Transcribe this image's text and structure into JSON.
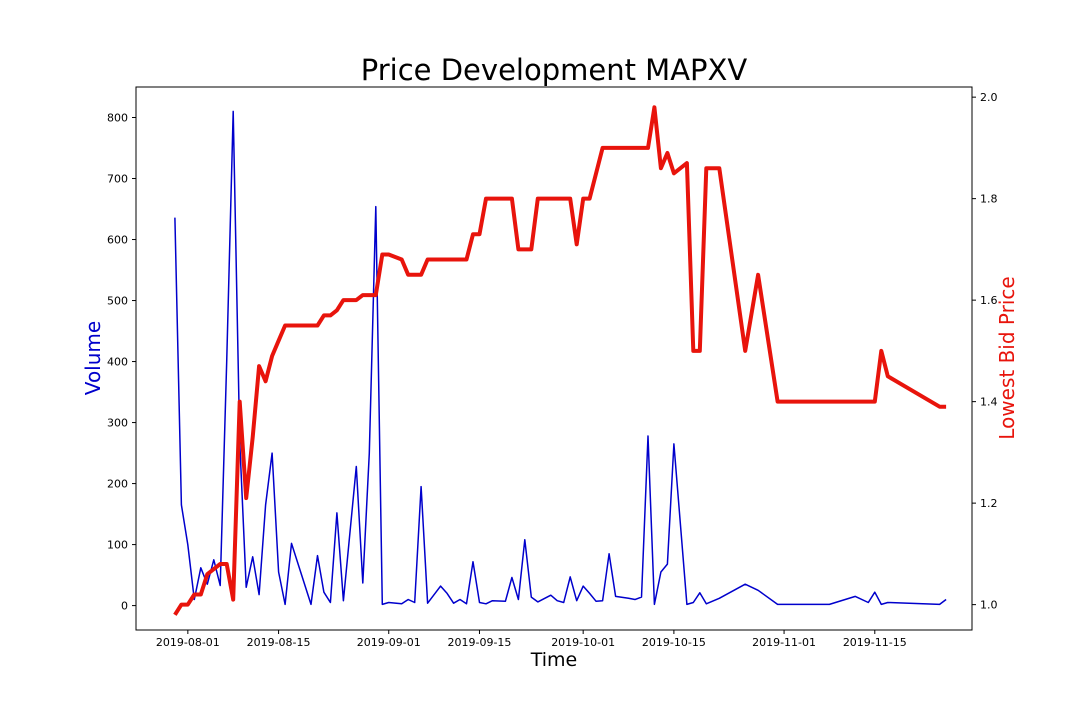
{
  "chart_data": {
    "type": "line",
    "title": "Price Development MAPXV",
    "xlabel": "Time",
    "ylabel_left": "Volume",
    "ylabel_right": "Lowest Bid Price",
    "colors": {
      "volume": "#0000cc",
      "price": "#e8140c"
    },
    "x_range": [
      "2019-07-24",
      "2019-11-30"
    ],
    "x_ticks": [
      "2019-08-01",
      "2019-08-15",
      "2019-09-01",
      "2019-09-15",
      "2019-10-01",
      "2019-10-15",
      "2019-11-01",
      "2019-11-15"
    ],
    "y_left": {
      "range": [
        -40,
        850
      ],
      "ticks": [
        0,
        100,
        200,
        300,
        400,
        500,
        600,
        700,
        800
      ]
    },
    "y_right": {
      "range": [
        0.95,
        2.02
      ],
      "ticks": [
        1.0,
        1.2,
        1.4,
        1.6,
        1.8,
        2.0
      ]
    },
    "grid": false,
    "series": [
      {
        "axis": "left",
        "points": [
          [
            "2019-07-30",
            636
          ],
          [
            "2019-07-31",
            165
          ],
          [
            "2019-08-01",
            100
          ],
          [
            "2019-08-02",
            10
          ],
          [
            "2019-08-03",
            62
          ],
          [
            "2019-08-04",
            35
          ],
          [
            "2019-08-05",
            75
          ],
          [
            "2019-08-06",
            33
          ],
          [
            "2019-08-07",
            400
          ],
          [
            "2019-08-08",
            810
          ],
          [
            "2019-08-09",
            270
          ],
          [
            "2019-08-10",
            30
          ],
          [
            "2019-08-11",
            80
          ],
          [
            "2019-08-12",
            18
          ],
          [
            "2019-08-13",
            165
          ],
          [
            "2019-08-14",
            250
          ],
          [
            "2019-08-15",
            55
          ],
          [
            "2019-08-16",
            2
          ],
          [
            "2019-08-17",
            102
          ],
          [
            "2019-08-20",
            2
          ],
          [
            "2019-08-21",
            82
          ],
          [
            "2019-08-22",
            22
          ],
          [
            "2019-08-23",
            5
          ],
          [
            "2019-08-24",
            152
          ],
          [
            "2019-08-25",
            8
          ],
          [
            "2019-08-27",
            228
          ],
          [
            "2019-08-28",
            37
          ],
          [
            "2019-08-29",
            250
          ],
          [
            "2019-08-30",
            654
          ],
          [
            "2019-08-31",
            2
          ],
          [
            "2019-09-01",
            5
          ],
          [
            "2019-09-03",
            3
          ],
          [
            "2019-09-04",
            10
          ],
          [
            "2019-09-05",
            5
          ],
          [
            "2019-09-06",
            195
          ],
          [
            "2019-09-07",
            4
          ],
          [
            "2019-09-09",
            32
          ],
          [
            "2019-09-10",
            20
          ],
          [
            "2019-09-11",
            4
          ],
          [
            "2019-09-12",
            10
          ],
          [
            "2019-09-13",
            3
          ],
          [
            "2019-09-14",
            72
          ],
          [
            "2019-09-15",
            5
          ],
          [
            "2019-09-16",
            3
          ],
          [
            "2019-09-17",
            8
          ],
          [
            "2019-09-19",
            7
          ],
          [
            "2019-09-20",
            46
          ],
          [
            "2019-09-21",
            10
          ],
          [
            "2019-09-22",
            108
          ],
          [
            "2019-09-23",
            14
          ],
          [
            "2019-09-24",
            6
          ],
          [
            "2019-09-26",
            17
          ],
          [
            "2019-09-27",
            8
          ],
          [
            "2019-09-28",
            5
          ],
          [
            "2019-09-29",
            47
          ],
          [
            "2019-09-30",
            8
          ],
          [
            "2019-10-01",
            32
          ],
          [
            "2019-10-02",
            20
          ],
          [
            "2019-10-03",
            7
          ],
          [
            "2019-10-04",
            8
          ],
          [
            "2019-10-05",
            85
          ],
          [
            "2019-10-06",
            15
          ],
          [
            "2019-10-08",
            12
          ],
          [
            "2019-10-09",
            10
          ],
          [
            "2019-10-10",
            14
          ],
          [
            "2019-10-11",
            278
          ],
          [
            "2019-10-12",
            2
          ],
          [
            "2019-10-13",
            55
          ],
          [
            "2019-10-14",
            68
          ],
          [
            "2019-10-15",
            265
          ],
          [
            "2019-10-17",
            2
          ],
          [
            "2019-10-18",
            5
          ],
          [
            "2019-10-19",
            21
          ],
          [
            "2019-10-20",
            3
          ],
          [
            "2019-10-22",
            12
          ],
          [
            "2019-10-26",
            35
          ],
          [
            "2019-10-28",
            25
          ],
          [
            "2019-10-31",
            2
          ],
          [
            "2019-11-08",
            2
          ],
          [
            "2019-11-12",
            15
          ],
          [
            "2019-11-14",
            5
          ],
          [
            "2019-11-15",
            22
          ],
          [
            "2019-11-16",
            2
          ],
          [
            "2019-11-17",
            5
          ],
          [
            "2019-11-25",
            2
          ],
          [
            "2019-11-26",
            10
          ]
        ]
      },
      {
        "axis": "right",
        "points": [
          [
            "2019-07-30",
            0.98
          ],
          [
            "2019-07-31",
            1.0
          ],
          [
            "2019-08-01",
            1.0
          ],
          [
            "2019-08-02",
            1.02
          ],
          [
            "2019-08-03",
            1.02
          ],
          [
            "2019-08-04",
            1.06
          ],
          [
            "2019-08-05",
            1.07
          ],
          [
            "2019-08-06",
            1.08
          ],
          [
            "2019-08-07",
            1.08
          ],
          [
            "2019-08-08",
            1.01
          ],
          [
            "2019-08-09",
            1.4
          ],
          [
            "2019-08-10",
            1.21
          ],
          [
            "2019-08-11",
            1.33
          ],
          [
            "2019-08-12",
            1.47
          ],
          [
            "2019-08-13",
            1.44
          ],
          [
            "2019-08-14",
            1.49
          ],
          [
            "2019-08-15",
            1.52
          ],
          [
            "2019-08-16",
            1.55
          ],
          [
            "2019-08-19",
            1.55
          ],
          [
            "2019-08-21",
            1.55
          ],
          [
            "2019-08-22",
            1.57
          ],
          [
            "2019-08-23",
            1.57
          ],
          [
            "2019-08-24",
            1.58
          ],
          [
            "2019-08-25",
            1.6
          ],
          [
            "2019-08-27",
            1.6
          ],
          [
            "2019-08-28",
            1.61
          ],
          [
            "2019-08-30",
            1.61
          ],
          [
            "2019-08-31",
            1.69
          ],
          [
            "2019-09-01",
            1.69
          ],
          [
            "2019-09-03",
            1.68
          ],
          [
            "2019-09-04",
            1.65
          ],
          [
            "2019-09-06",
            1.65
          ],
          [
            "2019-09-07",
            1.68
          ],
          [
            "2019-09-13",
            1.68
          ],
          [
            "2019-09-14",
            1.73
          ],
          [
            "2019-09-15",
            1.73
          ],
          [
            "2019-09-16",
            1.8
          ],
          [
            "2019-09-20",
            1.8
          ],
          [
            "2019-09-21",
            1.7
          ],
          [
            "2019-09-23",
            1.7
          ],
          [
            "2019-09-24",
            1.8
          ],
          [
            "2019-09-29",
            1.8
          ],
          [
            "2019-09-30",
            1.71
          ],
          [
            "2019-10-01",
            1.8
          ],
          [
            "2019-10-02",
            1.8
          ],
          [
            "2019-10-04",
            1.9
          ],
          [
            "2019-10-07",
            1.9
          ],
          [
            "2019-10-11",
            1.9
          ],
          [
            "2019-10-12",
            1.98
          ],
          [
            "2019-10-13",
            1.86
          ],
          [
            "2019-10-14",
            1.89
          ],
          [
            "2019-10-15",
            1.85
          ],
          [
            "2019-10-17",
            1.87
          ],
          [
            "2019-10-18",
            1.5
          ],
          [
            "2019-10-19",
            1.5
          ],
          [
            "2019-10-20",
            1.86
          ],
          [
            "2019-10-22",
            1.86
          ],
          [
            "2019-10-26",
            1.5
          ],
          [
            "2019-10-28",
            1.65
          ],
          [
            "2019-10-31",
            1.4
          ],
          [
            "2019-11-15",
            1.4
          ],
          [
            "2019-11-16",
            1.5
          ],
          [
            "2019-11-17",
            1.45
          ],
          [
            "2019-11-25",
            1.39
          ],
          [
            "2019-11-26",
            1.39
          ]
        ]
      }
    ]
  }
}
